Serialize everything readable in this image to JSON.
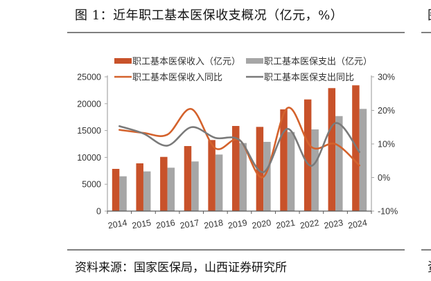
{
  "figure": {
    "title": "图 1：近年职工基本医保收支概况（亿元，%）",
    "source": "资料来源：国家医保局，山西证券研究所",
    "next_column_title_glyph": "图",
    "next_column_source_glyph": "资"
  },
  "colors": {
    "income": "#C8522A",
    "expense": "#A6A6A6",
    "income_yoy": "#D4622C",
    "expense_yoy": "#7A7A7A",
    "axis": "#A6A6A6",
    "rule": "#7F7F7F",
    "text": "#333333"
  },
  "chart_data": {
    "type": "bar",
    "title": "近年职工基本医保收支概况（亿元，%）",
    "xlabel": "",
    "ylabel": "",
    "categories": [
      "2014",
      "2015",
      "2016",
      "2017",
      "2018",
      "2019",
      "2020",
      "2021",
      "2022",
      "2023",
      "2024"
    ],
    "series": [
      {
        "name": "职工基本医保收入（亿元）",
        "kind": "bar",
        "axis": "left",
        "values": [
          7860,
          8890,
          10090,
          12110,
          13230,
          15850,
          15680,
          18940,
          20790,
          22900,
          23420
        ]
      },
      {
        "name": "职工基本医保支出（亿元）",
        "kind": "bar",
        "axis": "left",
        "values": [
          6480,
          7390,
          8080,
          9240,
          10530,
          12670,
          12890,
          14730,
          15210,
          17690,
          19030
        ]
      },
      {
        "name": "职工基本医保收入同比",
        "kind": "line",
        "axis": "right",
        "values": [
          14.2,
          13.3,
          12.8,
          20.4,
          8.7,
          11.2,
          0.2,
          20.7,
          9.1,
          10.0,
          3.6
        ]
      },
      {
        "name": "职工基本医保支出同比",
        "kind": "line",
        "axis": "right",
        "values": [
          15.3,
          13.1,
          9.5,
          15.0,
          11.8,
          11.2,
          1.6,
          14.5,
          3.5,
          16.2,
          7.6
        ]
      }
    ],
    "ylim": [
      0,
      25000
    ],
    "y_ticks": [
      0,
      5000,
      10000,
      15000,
      20000,
      25000
    ],
    "y2lim": [
      -10,
      30
    ],
    "y2_ticks": [
      "-10%",
      "0%",
      "10%",
      "20%",
      "30%"
    ],
    "y2_tick_values": [
      -10,
      0,
      10,
      20,
      30
    ],
    "grid": false,
    "legend_position": "top",
    "smooth_lines": true
  }
}
